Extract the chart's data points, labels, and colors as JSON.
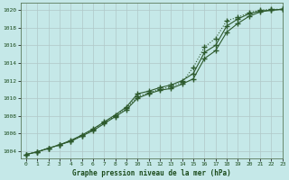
{
  "title": "Graphe pression niveau de la mer (hPa)",
  "background_color": "#c5e8e8",
  "grid_color": "#b0c8c8",
  "line_color": "#2d5a2d",
  "xlim": [
    -0.5,
    23
  ],
  "ylim": [
    1003.2,
    1020.8
  ],
  "yticks": [
    1004,
    1006,
    1008,
    1010,
    1012,
    1014,
    1016,
    1018,
    1020
  ],
  "xticks": [
    0,
    1,
    2,
    3,
    4,
    5,
    6,
    7,
    8,
    9,
    10,
    11,
    12,
    13,
    14,
    15,
    16,
    17,
    18,
    19,
    20,
    21,
    22,
    23
  ],
  "series1_x": [
    0,
    1,
    2,
    3,
    4,
    5,
    6,
    7,
    8,
    9,
    10,
    11,
    12,
    13,
    14,
    15,
    16,
    17,
    18,
    19,
    20,
    21,
    22,
    23
  ],
  "series1_y": [
    1003.6,
    1003.9,
    1004.3,
    1004.7,
    1005.2,
    1005.8,
    1006.5,
    1007.3,
    1008.1,
    1009.0,
    1010.5,
    1010.8,
    1011.2,
    1011.5,
    1012.0,
    1012.8,
    1015.2,
    1016.0,
    1018.2,
    1019.0,
    1019.6,
    1019.9,
    1020.0,
    1020.1
  ],
  "series2_x": [
    0,
    1,
    2,
    3,
    4,
    5,
    6,
    7,
    8,
    9,
    10,
    11,
    12,
    13,
    14,
    15,
    16,
    17,
    18,
    19,
    20,
    21,
    22,
    23
  ],
  "series2_y": [
    1003.6,
    1003.9,
    1004.3,
    1004.7,
    1005.1,
    1005.7,
    1006.3,
    1007.1,
    1007.9,
    1008.7,
    1010.0,
    1010.5,
    1010.9,
    1011.1,
    1011.6,
    1012.2,
    1014.5,
    1015.4,
    1017.5,
    1018.5,
    1019.3,
    1019.8,
    1020.0,
    1020.1
  ],
  "series3_x": [
    0,
    1,
    2,
    3,
    4,
    5,
    6,
    7,
    8,
    9,
    10,
    11,
    12,
    13,
    14,
    15,
    16,
    17,
    18,
    19,
    20,
    21,
    22,
    23
  ],
  "series3_y": [
    1003.6,
    1003.9,
    1004.3,
    1004.7,
    1005.1,
    1005.7,
    1006.4,
    1007.2,
    1008.0,
    1008.9,
    1010.2,
    1010.6,
    1011.0,
    1011.3,
    1011.8,
    1013.5,
    1015.8,
    1016.8,
    1018.8,
    1019.2,
    1019.7,
    1020.0,
    1020.1,
    1020.1
  ]
}
